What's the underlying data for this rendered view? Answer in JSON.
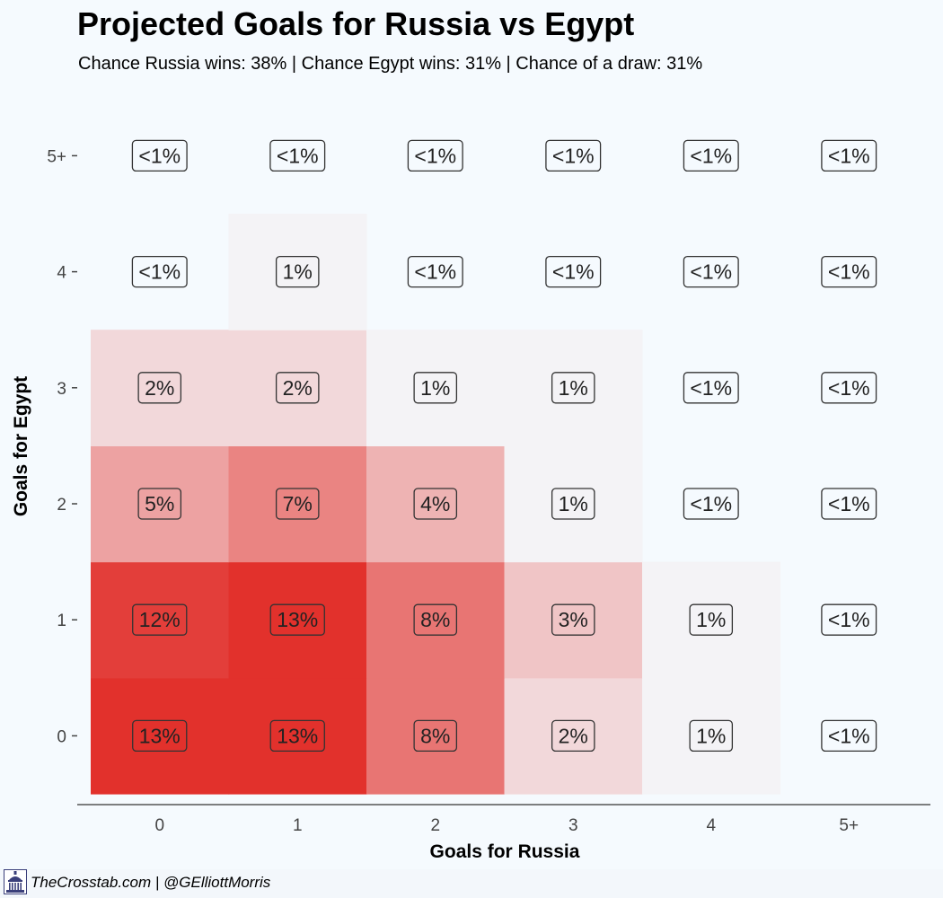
{
  "chart_data": {
    "type": "heatmap",
    "title": "Projected Goals for Russia vs Egypt",
    "subtitle": "Chance Russia wins: 38% | Chance Egypt wins: 31% | Chance of a draw: 31%",
    "xlabel": "Goals for Russia",
    "ylabel": "Goals for Egypt",
    "x_categories": [
      "0",
      "1",
      "2",
      "3",
      "4",
      "5+"
    ],
    "y_categories": [
      "0",
      "1",
      "2",
      "3",
      "4",
      "5+"
    ],
    "color_low": "#f4f3f6",
    "color_high": "#e2312c",
    "empty_color": "#f3faff",
    "cells": [
      {
        "x": "0",
        "y": "0",
        "value": 13,
        "label": "13%"
      },
      {
        "x": "1",
        "y": "0",
        "value": 13,
        "label": "13%"
      },
      {
        "x": "2",
        "y": "0",
        "value": 8,
        "label": "8%"
      },
      {
        "x": "3",
        "y": "0",
        "value": 2,
        "label": "2%"
      },
      {
        "x": "4",
        "y": "0",
        "value": 1,
        "label": "1%"
      },
      {
        "x": "5+",
        "y": "0",
        "value": null,
        "label": "<1%"
      },
      {
        "x": "0",
        "y": "1",
        "value": 12,
        "label": "12%"
      },
      {
        "x": "1",
        "y": "1",
        "value": 13,
        "label": "13%"
      },
      {
        "x": "2",
        "y": "1",
        "value": 8,
        "label": "8%"
      },
      {
        "x": "3",
        "y": "1",
        "value": 3,
        "label": "3%"
      },
      {
        "x": "4",
        "y": "1",
        "value": 1,
        "label": "1%"
      },
      {
        "x": "5+",
        "y": "1",
        "value": null,
        "label": "<1%"
      },
      {
        "x": "0",
        "y": "2",
        "value": 5,
        "label": "5%"
      },
      {
        "x": "1",
        "y": "2",
        "value": 7,
        "label": "7%"
      },
      {
        "x": "2",
        "y": "2",
        "value": 4,
        "label": "4%"
      },
      {
        "x": "3",
        "y": "2",
        "value": 1,
        "label": "1%"
      },
      {
        "x": "4",
        "y": "2",
        "value": null,
        "label": "<1%"
      },
      {
        "x": "5+",
        "y": "2",
        "value": null,
        "label": "<1%"
      },
      {
        "x": "0",
        "y": "3",
        "value": 2,
        "label": "2%"
      },
      {
        "x": "1",
        "y": "3",
        "value": 2,
        "label": "2%"
      },
      {
        "x": "2",
        "y": "3",
        "value": 1,
        "label": "1%"
      },
      {
        "x": "3",
        "y": "3",
        "value": 1,
        "label": "1%"
      },
      {
        "x": "4",
        "y": "3",
        "value": null,
        "label": "<1%"
      },
      {
        "x": "5+",
        "y": "3",
        "value": null,
        "label": "<1%"
      },
      {
        "x": "0",
        "y": "4",
        "value": null,
        "label": "<1%"
      },
      {
        "x": "1",
        "y": "4",
        "value": 1,
        "label": "1%"
      },
      {
        "x": "2",
        "y": "4",
        "value": null,
        "label": "<1%"
      },
      {
        "x": "3",
        "y": "4",
        "value": null,
        "label": "<1%"
      },
      {
        "x": "4",
        "y": "4",
        "value": null,
        "label": "<1%"
      },
      {
        "x": "5+",
        "y": "4",
        "value": null,
        "label": "<1%"
      },
      {
        "x": "0",
        "y": "5+",
        "value": null,
        "label": "<1%"
      },
      {
        "x": "1",
        "y": "5+",
        "value": null,
        "label": "<1%"
      },
      {
        "x": "2",
        "y": "5+",
        "value": null,
        "label": "<1%"
      },
      {
        "x": "3",
        "y": "5+",
        "value": null,
        "label": "<1%"
      },
      {
        "x": "4",
        "y": "5+",
        "value": null,
        "label": "<1%"
      },
      {
        "x": "5+",
        "y": "5+",
        "value": null,
        "label": "<1%"
      }
    ]
  },
  "footer": {
    "credit": "TheCrosstab.com | @GElliottMorris",
    "logo_icon": "capitol-building-icon"
  }
}
